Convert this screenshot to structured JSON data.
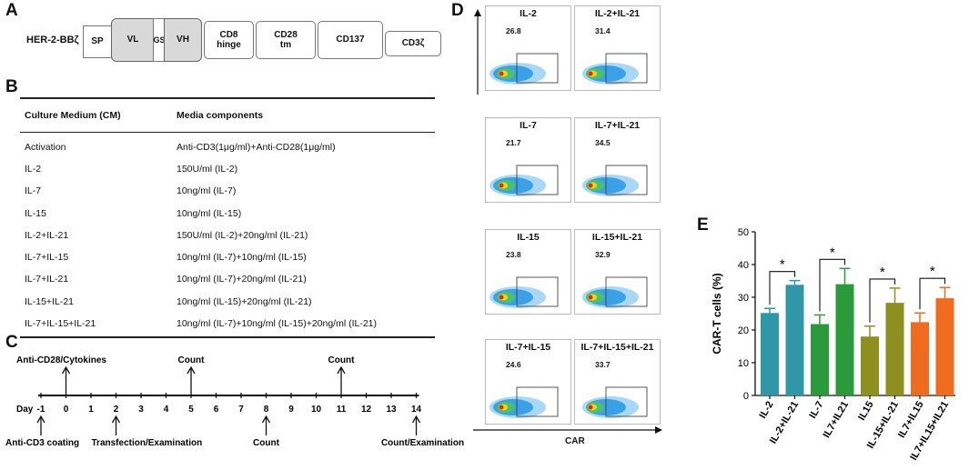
{
  "panels": {
    "a": "A",
    "b": "B",
    "c": "C",
    "d": "D",
    "e": "E"
  },
  "construct": {
    "name": "HER-2-BBζ",
    "segments": [
      "SP",
      "VL",
      "GS",
      "VH",
      "CD8\nhinge",
      "CD28\ntm",
      "CD137",
      "CD3ζ"
    ]
  },
  "table": {
    "headers": [
      "Culture Medium (CM)",
      "Media components"
    ],
    "rows": [
      [
        "Activation",
        "Anti-CD3(1μg/ml)+Anti-CD28(1μg/ml)"
      ],
      [
        "IL-2",
        "150U/ml (IL-2)"
      ],
      [
        "IL-7",
        "10ng/ml (IL-7)"
      ],
      [
        "IL-15",
        "10ng/ml (IL-15)"
      ],
      [
        "IL-2+IL-21",
        "150U/ml (IL-2)+20ng/ml (IL-21)"
      ],
      [
        "IL-7+IL-15",
        "10ng/ml (IL-7)+10ng/ml (IL-15)"
      ],
      [
        "IL-7+IL-21",
        "10ng/ml (IL-7)+20ng/ml (IL-21)"
      ],
      [
        "IL-15+IL-21",
        "10ng/ml (IL-15)+20ng/ml (IL-21)"
      ],
      [
        "IL-7+IL-15+IL-21",
        "10ng/ml (IL-7)+10ng/ml (IL-15)+20ng/ml (IL-21)"
      ]
    ]
  },
  "timeline": {
    "day_label": "Day",
    "days": [
      "-1",
      "0",
      "1",
      "2",
      "3",
      "4",
      "5",
      "6",
      "7",
      "8",
      "9",
      "10",
      "11",
      "12",
      "13",
      "14"
    ],
    "events_above": [
      {
        "day": "0",
        "text": "Anti-CD28/Cytokines"
      },
      {
        "day": "5",
        "text": "Count"
      },
      {
        "day": "11",
        "text": "Count"
      }
    ],
    "events_below": [
      {
        "day": "-1",
        "text": "Anti-CD3 coating"
      },
      {
        "day": "2",
        "text": "Transfection/Examination"
      },
      {
        "day": "8",
        "text": "Count"
      },
      {
        "day": "14",
        "text": "Count/Examination"
      }
    ]
  },
  "flow": {
    "axis_label": "CAR",
    "plots": [
      {
        "title": "IL-2",
        "percent": "26.8"
      },
      {
        "title": "IL-2+IL-21",
        "percent": "31.4"
      },
      {
        "title": "IL-7",
        "percent": "21.7"
      },
      {
        "title": "IL-7+IL-21",
        "percent": "34.5"
      },
      {
        "title": "IL-15",
        "percent": "23.8"
      },
      {
        "title": "IL-15+IL-21",
        "percent": "32.9"
      },
      {
        "title": "IL-7+IL-15",
        "percent": "24.6"
      },
      {
        "title": "IL-7+IL-15+IL-21",
        "percent": "33.7"
      }
    ]
  },
  "chart_data": {
    "type": "bar",
    "title": "",
    "ylabel": "CAR-T cells (%)",
    "xlabel": "",
    "ylim": [
      0,
      50
    ],
    "yticks": [
      0,
      10,
      20,
      30,
      40,
      50
    ],
    "categories": [
      "IL-2",
      "IL-2+IL-21",
      "IL-7",
      "IL7+IL21",
      "IL15",
      "IL-15+IL-21",
      "IL7+IL15",
      "IL7+IL15+IL21"
    ],
    "values": [
      25.2,
      33.8,
      21.8,
      34.0,
      18.0,
      28.3,
      22.4,
      29.7
    ],
    "errors": [
      1.4,
      1.3,
      2.8,
      4.8,
      3.2,
      4.5,
      2.8,
      3.3
    ],
    "colors": [
      "#2f97a8",
      "#2f97a8",
      "#2a9a3a",
      "#2a9a3a",
      "#8d8f1e",
      "#8d8f1e",
      "#ee6b1f",
      "#ee6b1f"
    ],
    "significance": [
      {
        "pair": [
          0,
          1
        ],
        "label": "*"
      },
      {
        "pair": [
          2,
          3
        ],
        "label": "*"
      },
      {
        "pair": [
          4,
          5
        ],
        "label": "*"
      },
      {
        "pair": [
          6,
          7
        ],
        "label": "*"
      }
    ]
  }
}
